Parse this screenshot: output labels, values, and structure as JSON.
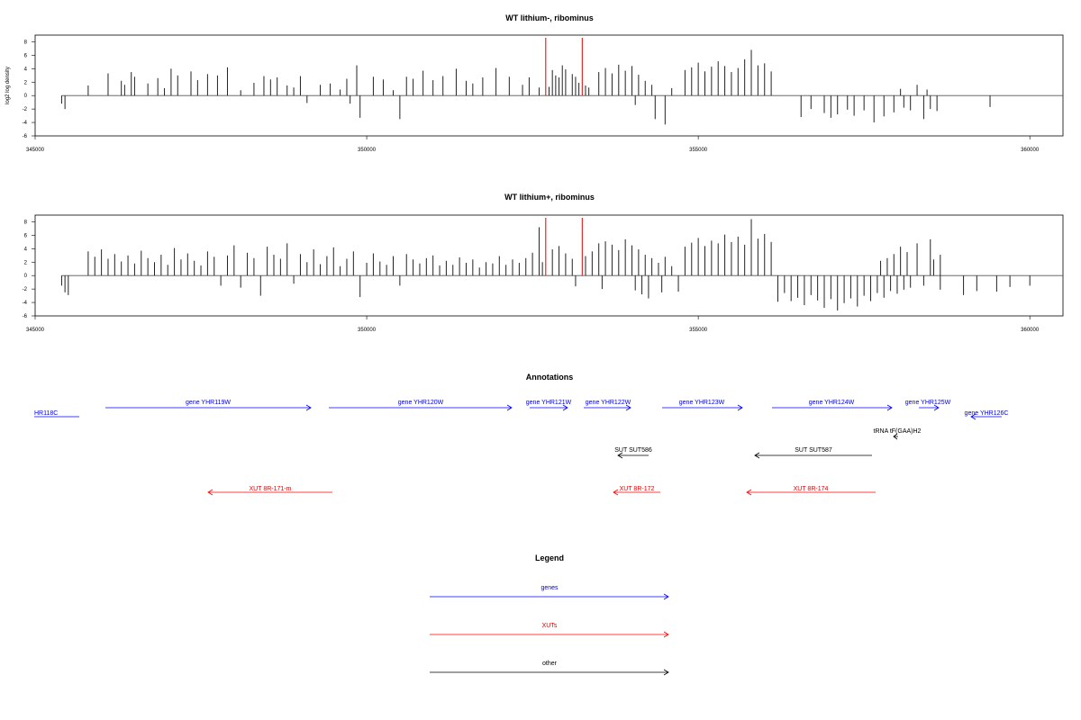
{
  "chart_data": [
    {
      "type": "bar",
      "title": "WT lithium-, ribominus",
      "ylabel": "log2 log density",
      "xlim": [
        345000,
        360500
      ],
      "ylim": [
        -6,
        9
      ],
      "x_ticks": [
        "345000",
        "350000",
        "355000",
        "360000"
      ],
      "y_ticks": [
        "-6",
        "-4",
        "-2",
        "0",
        "2",
        "4",
        "6",
        "8"
      ],
      "track": {
        "start": 345400,
        "end": 360500
      },
      "markers": [
        352700,
        353250
      ],
      "marker_color": "#dd0000",
      "bars": [
        [
          345400,
          -1.2
        ],
        [
          345450,
          -2.0
        ],
        [
          345800,
          1.5
        ],
        [
          346100,
          3.3
        ],
        [
          346300,
          2.2
        ],
        [
          346350,
          1.6
        ],
        [
          346450,
          3.5
        ],
        [
          346500,
          2.8
        ],
        [
          346700,
          1.8
        ],
        [
          346850,
          2.6
        ],
        [
          346950,
          1.1
        ],
        [
          347050,
          4.0
        ],
        [
          347150,
          3.0
        ],
        [
          347350,
          3.6
        ],
        [
          347450,
          2.3
        ],
        [
          347600,
          3.2
        ],
        [
          347750,
          3.0
        ],
        [
          347900,
          4.2
        ],
        [
          348100,
          0.8
        ],
        [
          348300,
          1.9
        ],
        [
          348450,
          2.9
        ],
        [
          348550,
          2.4
        ],
        [
          348650,
          2.7
        ],
        [
          348800,
          1.5
        ],
        [
          348900,
          1.2
        ],
        [
          349000,
          2.9
        ],
        [
          349100,
          -1.1
        ],
        [
          349300,
          1.6
        ],
        [
          349450,
          1.8
        ],
        [
          349600,
          0.9
        ],
        [
          349700,
          2.5
        ],
        [
          349750,
          -1.2
        ],
        [
          349850,
          4.5
        ],
        [
          349900,
          -3.3
        ],
        [
          350100,
          2.8
        ],
        [
          350250,
          2.4
        ],
        [
          350400,
          0.8
        ],
        [
          350500,
          -3.5
        ],
        [
          350600,
          2.8
        ],
        [
          350700,
          2.5
        ],
        [
          350850,
          3.7
        ],
        [
          351000,
          2.3
        ],
        [
          351150,
          2.9
        ],
        [
          351350,
          4.0
        ],
        [
          351500,
          2.2
        ],
        [
          351600,
          1.8
        ],
        [
          351750,
          2.7
        ],
        [
          351950,
          4.1
        ],
        [
          352150,
          2.8
        ],
        [
          352350,
          1.6
        ],
        [
          352450,
          2.7
        ],
        [
          352600,
          1.2
        ],
        [
          352750,
          1.3
        ],
        [
          352800,
          3.8
        ],
        [
          352850,
          3.0
        ],
        [
          352900,
          2.7
        ],
        [
          352950,
          4.5
        ],
        [
          353000,
          3.9
        ],
        [
          353100,
          3.2
        ],
        [
          353150,
          2.8
        ],
        [
          353200,
          1.9
        ],
        [
          353300,
          1.5
        ],
        [
          353350,
          1.2
        ],
        [
          353500,
          3.5
        ],
        [
          353600,
          4.1
        ],
        [
          353700,
          3.3
        ],
        [
          353800,
          4.6
        ],
        [
          353900,
          3.7
        ],
        [
          354000,
          4.4
        ],
        [
          354050,
          -1.4
        ],
        [
          354100,
          3.1
        ],
        [
          354200,
          2.2
        ],
        [
          354300,
          1.6
        ],
        [
          354350,
          -3.5
        ],
        [
          354500,
          -4.3
        ],
        [
          354600,
          1.1
        ],
        [
          354800,
          3.8
        ],
        [
          354900,
          4.2
        ],
        [
          355000,
          4.9
        ],
        [
          355100,
          3.6
        ],
        [
          355200,
          4.3
        ],
        [
          355300,
          5.1
        ],
        [
          355400,
          4.4
        ],
        [
          355500,
          3.5
        ],
        [
          355600,
          4.1
        ],
        [
          355700,
          5.4
        ],
        [
          355800,
          6.8
        ],
        [
          355900,
          4.5
        ],
        [
          356000,
          4.8
        ],
        [
          356100,
          3.6
        ],
        [
          356550,
          -3.2
        ],
        [
          356700,
          -2.0
        ],
        [
          356900,
          -2.6
        ],
        [
          357000,
          -3.3
        ],
        [
          357100,
          -2.8
        ],
        [
          357250,
          -2.1
        ],
        [
          357350,
          -3.0
        ],
        [
          357500,
          -2.2
        ],
        [
          357650,
          -4.0
        ],
        [
          357800,
          -3.1
        ],
        [
          357950,
          -2.5
        ],
        [
          358050,
          1.0
        ],
        [
          358100,
          -1.8
        ],
        [
          358200,
          -2.2
        ],
        [
          358300,
          1.6
        ],
        [
          358400,
          -3.5
        ],
        [
          358450,
          0.9
        ],
        [
          358500,
          -2.0
        ],
        [
          358600,
          -2.3
        ],
        [
          359400,
          -1.7
        ]
      ]
    },
    {
      "type": "bar",
      "title": "WT lithium+, ribominus",
      "ylabel": "",
      "xlim": [
        345000,
        360500
      ],
      "ylim": [
        -6,
        9
      ],
      "x_ticks": [
        "345000",
        "350000",
        "355000",
        "360000"
      ],
      "y_ticks": [
        "-6",
        "-4",
        "-2",
        "0",
        "2",
        "4",
        "6",
        "8"
      ],
      "track": {
        "start": 345400,
        "end": 360500
      },
      "markers": [
        352700,
        353250
      ],
      "marker_color": "#dd0000",
      "bars": [
        [
          345400,
          -1.5
        ],
        [
          345450,
          -2.5
        ],
        [
          345500,
          -2.9
        ],
        [
          345800,
          3.6
        ],
        [
          345900,
          2.8
        ],
        [
          346000,
          3.9
        ],
        [
          346100,
          2.5
        ],
        [
          346200,
          3.2
        ],
        [
          346300,
          2.1
        ],
        [
          346400,
          3.0
        ],
        [
          346500,
          1.8
        ],
        [
          346600,
          3.7
        ],
        [
          346700,
          2.6
        ],
        [
          346800,
          2.0
        ],
        [
          346900,
          3.1
        ],
        [
          347000,
          1.6
        ],
        [
          347100,
          4.1
        ],
        [
          347200,
          2.4
        ],
        [
          347300,
          3.3
        ],
        [
          347400,
          2.2
        ],
        [
          347500,
          1.5
        ],
        [
          347600,
          3.6
        ],
        [
          347700,
          2.8
        ],
        [
          347800,
          -1.5
        ],
        [
          347900,
          3.0
        ],
        [
          348000,
          4.5
        ],
        [
          348100,
          -1.8
        ],
        [
          348200,
          3.4
        ],
        [
          348300,
          2.6
        ],
        [
          348400,
          -3.0
        ],
        [
          348500,
          4.3
        ],
        [
          348600,
          3.1
        ],
        [
          348700,
          2.5
        ],
        [
          348800,
          4.8
        ],
        [
          348900,
          -1.2
        ],
        [
          349000,
          3.2
        ],
        [
          349100,
          2.0
        ],
        [
          349200,
          3.9
        ],
        [
          349300,
          1.7
        ],
        [
          349400,
          2.9
        ],
        [
          349500,
          4.2
        ],
        [
          349600,
          1.4
        ],
        [
          349700,
          2.5
        ],
        [
          349800,
          3.6
        ],
        [
          349900,
          -3.2
        ],
        [
          350000,
          1.9
        ],
        [
          350100,
          3.3
        ],
        [
          350200,
          2.1
        ],
        [
          350300,
          1.6
        ],
        [
          350400,
          2.9
        ],
        [
          350500,
          -1.5
        ],
        [
          350600,
          3.2
        ],
        [
          350700,
          2.4
        ],
        [
          350800,
          1.8
        ],
        [
          350900,
          2.6
        ],
        [
          351000,
          3.0
        ],
        [
          351100,
          1.5
        ],
        [
          351200,
          2.2
        ],
        [
          351300,
          1.6
        ],
        [
          351400,
          2.7
        ],
        [
          351500,
          1.9
        ],
        [
          351600,
          2.4
        ],
        [
          351700,
          1.2
        ],
        [
          351800,
          2.0
        ],
        [
          351900,
          1.8
        ],
        [
          352000,
          2.9
        ],
        [
          352100,
          1.6
        ],
        [
          352200,
          2.4
        ],
        [
          352300,
          1.9
        ],
        [
          352400,
          2.6
        ],
        [
          352500,
          3.4
        ],
        [
          352600,
          7.2
        ],
        [
          352650,
          2.0
        ],
        [
          352800,
          3.9
        ],
        [
          352900,
          4.4
        ],
        [
          353000,
          3.3
        ],
        [
          353100,
          2.5
        ],
        [
          353150,
          -1.6
        ],
        [
          353300,
          2.9
        ],
        [
          353400,
          3.6
        ],
        [
          353500,
          4.8
        ],
        [
          353550,
          -2.0
        ],
        [
          353600,
          5.1
        ],
        [
          353700,
          4.6
        ],
        [
          353800,
          3.8
        ],
        [
          353900,
          5.4
        ],
        [
          354000,
          4.5
        ],
        [
          354050,
          -2.2
        ],
        [
          354100,
          3.9
        ],
        [
          354150,
          -2.8
        ],
        [
          354200,
          3.1
        ],
        [
          354250,
          -3.4
        ],
        [
          354300,
          2.6
        ],
        [
          354400,
          1.9
        ],
        [
          354450,
          -2.5
        ],
        [
          354500,
          2.8
        ],
        [
          354600,
          1.4
        ],
        [
          354700,
          -2.4
        ],
        [
          354800,
          4.3
        ],
        [
          354900,
          4.9
        ],
        [
          355000,
          5.6
        ],
        [
          355100,
          4.4
        ],
        [
          355200,
          5.2
        ],
        [
          355300,
          4.8
        ],
        [
          355400,
          6.1
        ],
        [
          355500,
          5.0
        ],
        [
          355600,
          5.8
        ],
        [
          355700,
          4.6
        ],
        [
          355800,
          8.4
        ],
        [
          355900,
          5.5
        ],
        [
          356000,
          6.2
        ],
        [
          356100,
          5.0
        ],
        [
          356200,
          -3.9
        ],
        [
          356300,
          -2.6
        ],
        [
          356400,
          -3.8
        ],
        [
          356500,
          -3.3
        ],
        [
          356600,
          -4.4
        ],
        [
          356700,
          -2.9
        ],
        [
          356800,
          -3.7
        ],
        [
          356900,
          -4.8
        ],
        [
          357000,
          -3.5
        ],
        [
          357100,
          -5.2
        ],
        [
          357200,
          -4.1
        ],
        [
          357300,
          -3.4
        ],
        [
          357400,
          -4.6
        ],
        [
          357500,
          -3.0
        ],
        [
          357600,
          -3.8
        ],
        [
          357700,
          -2.6
        ],
        [
          357750,
          2.2
        ],
        [
          357800,
          -3.3
        ],
        [
          357850,
          2.6
        ],
        [
          357900,
          -2.3
        ],
        [
          357950,
          3.2
        ],
        [
          358000,
          -2.7
        ],
        [
          358050,
          4.3
        ],
        [
          358100,
          -2.1
        ],
        [
          358150,
          3.5
        ],
        [
          358200,
          -1.8
        ],
        [
          358300,
          4.8
        ],
        [
          358400,
          -1.5
        ],
        [
          358500,
          5.4
        ],
        [
          358550,
          2.4
        ],
        [
          358650,
          -2.1
        ],
        [
          358650,
          3.1
        ],
        [
          359000,
          -2.9
        ],
        [
          359200,
          -2.3
        ],
        [
          359500,
          -2.4
        ],
        [
          359700,
          -1.7
        ],
        [
          360000,
          -1.5
        ]
      ]
    }
  ],
  "annotations": {
    "title": "Annotations",
    "labels": [
      {
        "text": "HR118C",
        "color": "#0000cc"
      },
      {
        "text": "gene YHR119W",
        "color": "#0000cc"
      },
      {
        "text": "gene YHR120W",
        "color": "#0000cc"
      },
      {
        "text": "gene YHR121W",
        "color": "#0000cc"
      },
      {
        "text": "gene YHR122W",
        "color": "#0000cc"
      },
      {
        "text": "gene YHR123W",
        "color": "#0000cc"
      },
      {
        "text": "gene YHR124W",
        "color": "#0000cc"
      },
      {
        "text": "gene YHR125W",
        "color": "#0000cc"
      },
      {
        "text": "gene YHR126C",
        "color": "#0000cc"
      },
      {
        "text": "tRNA tF(GAA)H2",
        "color": "#000000"
      },
      {
        "text": "SUT SUT586",
        "color": "#000000"
      },
      {
        "text": "SUT SUT587",
        "color": "#000000"
      },
      {
        "text": "XUT 8R-171-m",
        "color": "#dd0000"
      },
      {
        "text": "XUT 8R-172",
        "color": "#dd0000"
      },
      {
        "text": "XUT 8R-174",
        "color": "#dd0000"
      }
    ]
  },
  "legend": {
    "title": "Legend",
    "items": [
      {
        "label": "genes",
        "color": "#0000ff"
      },
      {
        "label": "XUTs",
        "color": "#ff0000"
      },
      {
        "label": "other",
        "color": "#000000"
      }
    ]
  }
}
